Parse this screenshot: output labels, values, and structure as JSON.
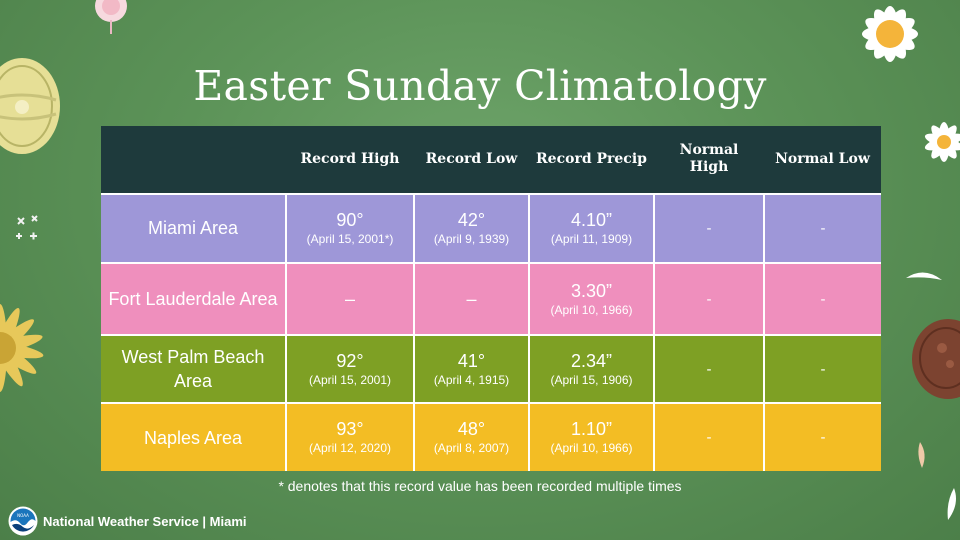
{
  "title": "Easter Sunday Climatology",
  "table": {
    "headers": [
      "",
      "Record High",
      "Record Low",
      "Record Precip",
      "Normal High",
      "Normal Low"
    ],
    "rows": [
      {
        "area": "Miami Area",
        "record_high": {
          "value": "90°",
          "date": "(April 15, 2001*)"
        },
        "record_low": {
          "value": "42°",
          "date": "(April 9, 1939)"
        },
        "record_precip": {
          "value": "4.10”",
          "date": "(April 11, 1909)"
        },
        "normal_high": "-",
        "normal_low": "-"
      },
      {
        "area": "Fort Lauderdale Area",
        "record_high": {
          "value": "–",
          "date": ""
        },
        "record_low": {
          "value": "–",
          "date": ""
        },
        "record_precip": {
          "value": "3.30”",
          "date": "(April 10, 1966)"
        },
        "normal_high": "-",
        "normal_low": "-"
      },
      {
        "area": "West Palm Beach Area",
        "record_high": {
          "value": "92°",
          "date": "(April 15, 2001)"
        },
        "record_low": {
          "value": "41°",
          "date": "(April 4, 1915)"
        },
        "record_precip": {
          "value": "2.34”",
          "date": "(April 15, 1906)"
        },
        "normal_high": "-",
        "normal_low": "-"
      },
      {
        "area": "Naples Area",
        "record_high": {
          "value": "93°",
          "date": "(April 12, 2020)"
        },
        "record_low": {
          "value": "48°",
          "date": "(April 8, 2007)"
        },
        "record_precip": {
          "value": "1.10”",
          "date": "(April 10, 1966)"
        },
        "normal_high": "-",
        "normal_low": "-"
      }
    ]
  },
  "footnote": "* denotes that this record value has been recorded multiple times",
  "footer": {
    "logo_icon": "noaa-logo-icon",
    "logo_text": "NOAA",
    "text": "National Weather Service | Miami"
  },
  "decorations": [
    "daisy-flower",
    "easter-egg",
    "chocolate-egg",
    "flower-petals",
    "fluffy-flower"
  ],
  "colors": {
    "background": "#5c9358",
    "header": "#1e3a3c",
    "miami": "#9e97d8",
    "fort_lauderdale": "#ef8fbd",
    "west_palm_beach": "#7ea024",
    "naples": "#f3bd24"
  }
}
